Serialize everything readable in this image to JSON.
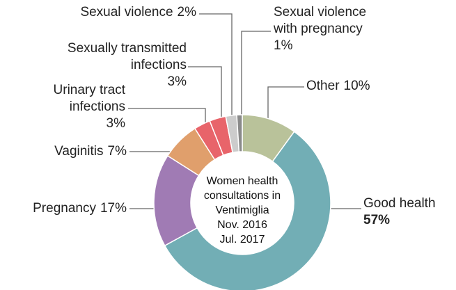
{
  "chart_data": {
    "type": "pie",
    "donut": true,
    "title": "Women health consultations in Ventimiglia",
    "subtitle": "Nov. 2016 Jul. 2017",
    "categories": [
      "Other",
      "Good health",
      "Pregnancy",
      "Vaginitis",
      "Urinary tract infections",
      "Sexually transmitted infections",
      "Sexual violence",
      "Sexual violence with pregnancy"
    ],
    "values": [
      10,
      57,
      17,
      7,
      3,
      3,
      2,
      1
    ],
    "value_labels": [
      "10%",
      "57%",
      "17%",
      "7%",
      "3%",
      "3%",
      "2%",
      "1%"
    ],
    "colors": [
      "#b9c29a",
      "#72aeb5",
      "#a07bb4",
      "#e09f6c",
      "#e8646a",
      "#e8646a",
      "#cccccc",
      "#8a8a8a"
    ]
  }
}
